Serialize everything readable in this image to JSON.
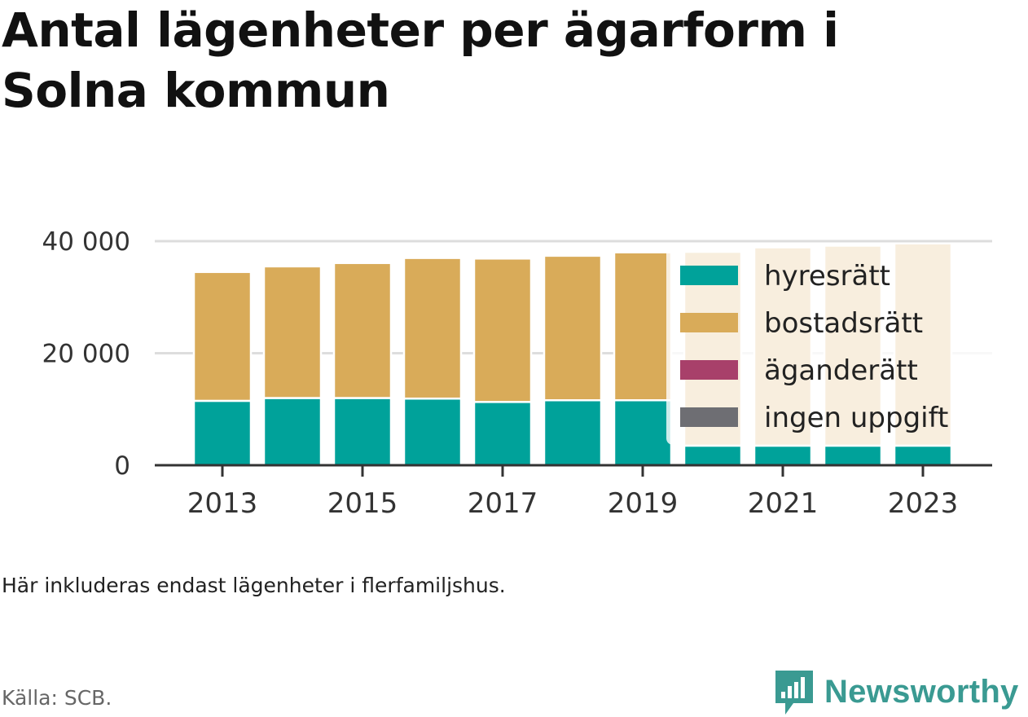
{
  "title_line1": "Antal lägenheter per ägarform i",
  "title_line2": "Solna kommun",
  "note": "Här inkluderas endast lägenheter i flerfamiljshus.",
  "source": "Källa: SCB.",
  "brand": {
    "name": "Newsworthy",
    "icon": "newsworthy-logo-icon"
  },
  "colors": {
    "hyresratt": "#00a29a",
    "bostadsratt": "#d9ab59",
    "aganderatt": "#a8406a",
    "ingen_uppgift": "#6e6e73"
  },
  "chart_data": {
    "type": "bar",
    "stacked": true,
    "categories": [
      "2013",
      "2014",
      "2015",
      "2016",
      "2017",
      "2018",
      "2019",
      "2020",
      "2021",
      "2022",
      "2023"
    ],
    "x_tick_labels": [
      "2013",
      "2015",
      "2017",
      "2019",
      "2021",
      "2023"
    ],
    "y_ticks": [
      {
        "value": 0,
        "label": "0"
      },
      {
        "value": 20000,
        "label": "20 000"
      },
      {
        "value": 40000,
        "label": "40 000"
      }
    ],
    "ylim": [
      0,
      40000
    ],
    "grid": true,
    "legend_position": "right",
    "series": [
      {
        "name": "hyresrätt",
        "color": "#00a29a",
        "values": [
          11500,
          12000,
          12000,
          11900,
          11300,
          11600,
          11600,
          3500,
          3500,
          3500,
          3500
        ]
      },
      {
        "name": "bostadsrätt",
        "color": "#d9ab59",
        "values": [
          23000,
          23500,
          24100,
          25100,
          25600,
          25800,
          26400,
          34600,
          35400,
          35700,
          36100
        ]
      },
      {
        "name": "äganderätt",
        "color": "#a8406a",
        "values": [
          0,
          0,
          0,
          0,
          0,
          0,
          0,
          0,
          0,
          0,
          0
        ]
      },
      {
        "name": "ingen uppgift",
        "color": "#6e6e73",
        "values": [
          0,
          0,
          0,
          0,
          0,
          0,
          0,
          0,
          0,
          0,
          0
        ]
      }
    ]
  }
}
